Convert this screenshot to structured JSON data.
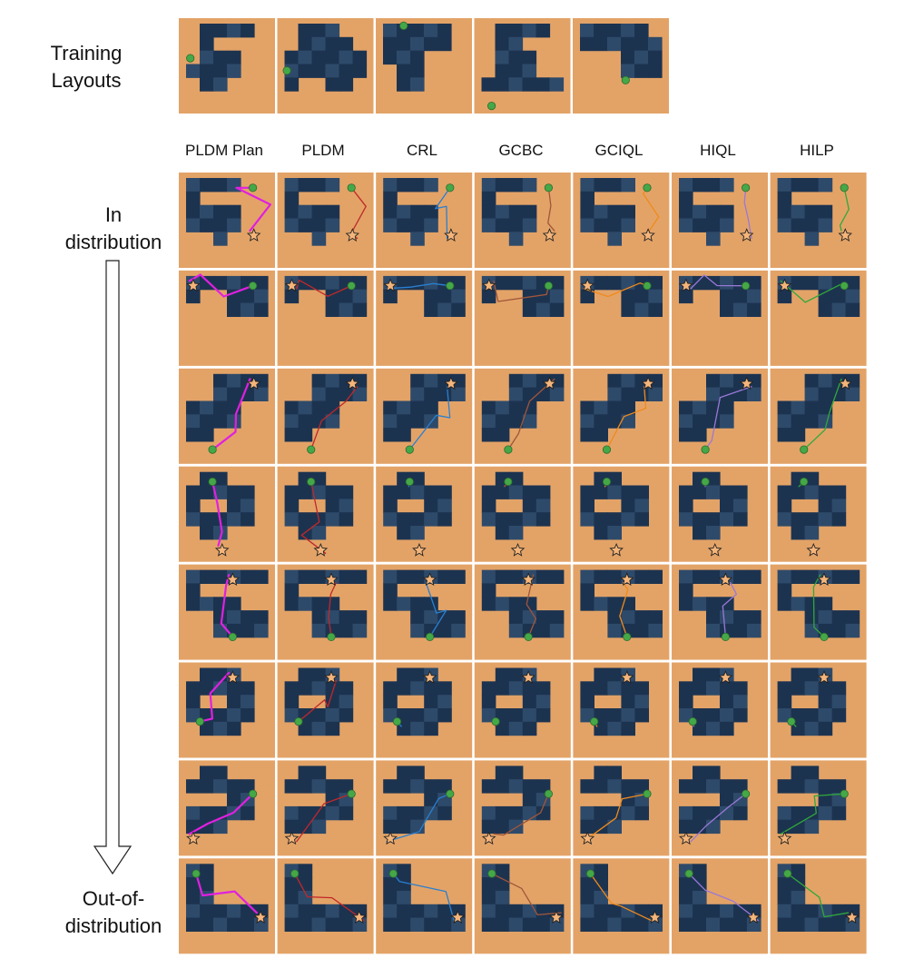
{
  "training_label": "Training Layouts",
  "training_label_lines": [
    "Training",
    "Layouts"
  ],
  "columns": [
    "PLDM Plan",
    "PLDM",
    "CRL",
    "GCBC",
    "GCIQL",
    "HIQL",
    "HILP"
  ],
  "side_top_lines": [
    "In",
    "distribution"
  ],
  "side_bottom_lines": [
    "Out-of-",
    "distribution"
  ],
  "method_colors": {
    "PLDM Plan": "#e020e0",
    "PLDM": "#c0282a",
    "CRL": "#2a7fd0",
    "GCBC": "#a0563a",
    "GCIQL": "#f08a1c",
    "HIQL": "#9a78d8",
    "HILP": "#2fa83a"
  },
  "colors": {
    "floor": "#e3a367",
    "maze_dark": "#1c3350",
    "maze_light": "#2e4a6a",
    "start_marker": "#45a847",
    "goal_star": "#f5b57a"
  },
  "icons": [
    "start-dot-icon",
    "goal-star-icon",
    "down-arrow-icon"
  ],
  "row_count": 8,
  "training_layout_count": 5
}
